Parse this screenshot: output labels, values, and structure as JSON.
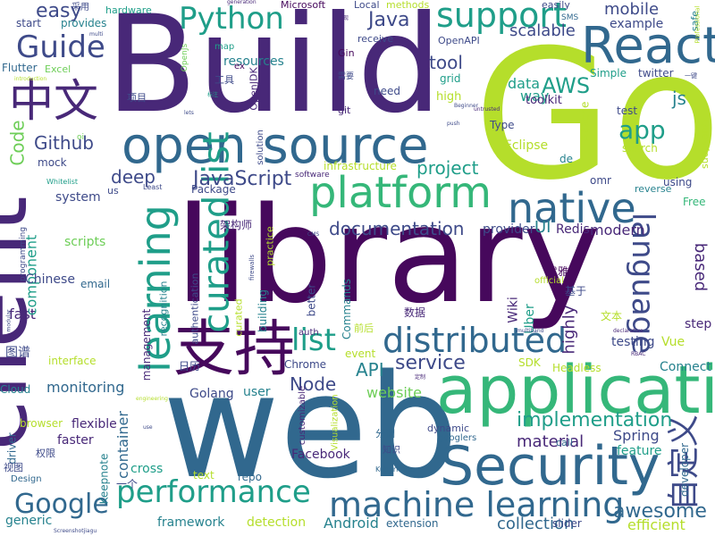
{
  "palette": {
    "purple": "#46085c",
    "indigo": "#482878",
    "blue": "#3e4a89",
    "slate": "#31688e",
    "teal": "#26828e",
    "green_teal": "#1f9e89",
    "green": "#35b779",
    "lime": "#6ece58",
    "yellow_green": "#b5de2b",
    "yellow": "#cce42a"
  },
  "words": [
    {
      "text": "Build",
      "color": "indigo"
    },
    {
      "text": "Go",
      "color": "yellow_green"
    },
    {
      "text": "library",
      "color": "purple"
    },
    {
      "text": "web",
      "color": "slate"
    },
    {
      "text": "client",
      "color": "indigo"
    },
    {
      "text": "application",
      "color": "green"
    },
    {
      "text": "Security",
      "color": "slate"
    },
    {
      "text": "open source",
      "color": "slate"
    },
    {
      "text": "React",
      "color": "slate"
    },
    {
      "text": "支持",
      "color": "purple"
    },
    {
      "text": "platform",
      "color": "green"
    },
    {
      "text": "machine learning",
      "color": "slate"
    },
    {
      "text": "native",
      "color": "slate"
    },
    {
      "text": "learning",
      "color": "green_teal"
    },
    {
      "text": "Python",
      "color": "green_teal"
    },
    {
      "text": "support",
      "color": "green_teal"
    },
    {
      "text": "Guide",
      "color": "blue"
    },
    {
      "text": "中文",
      "color": "indigo"
    },
    {
      "text": "curated list",
      "color": "green_teal"
    },
    {
      "text": "distributed",
      "color": "slate"
    },
    {
      "text": "performance",
      "color": "green_teal"
    },
    {
      "text": "language",
      "color": "blue"
    },
    {
      "text": "Google",
      "color": "slate"
    },
    {
      "text": "自定义",
      "color": "blue"
    },
    {
      "text": "awesome",
      "color": "slate"
    },
    {
      "text": "implementation",
      "color": "green_teal"
    },
    {
      "text": "documentation",
      "color": "blue"
    },
    {
      "text": "list",
      "color": "green_teal"
    },
    {
      "text": "JavaScript",
      "color": "blue"
    },
    {
      "text": "app",
      "color": "green_teal"
    },
    {
      "text": "AWS",
      "color": "green_teal"
    },
    {
      "text": "service",
      "color": "blue"
    },
    {
      "text": "project",
      "color": "green_teal"
    },
    {
      "text": "mobile",
      "color": "blue"
    },
    {
      "text": "scalable",
      "color": "blue"
    },
    {
      "text": "Github",
      "color": "blue"
    },
    {
      "text": "tool",
      "color": "blue"
    },
    {
      "text": "easy",
      "color": "blue"
    },
    {
      "text": "Java",
      "color": "blue"
    },
    {
      "text": "collection",
      "color": "slate"
    },
    {
      "text": "material",
      "color": "indigo"
    },
    {
      "text": "highly",
      "color": "indigo"
    },
    {
      "text": "Node",
      "color": "blue"
    },
    {
      "text": "deep",
      "color": "blue"
    },
    {
      "text": "API",
      "color": "teal"
    },
    {
      "text": "Code",
      "color": "lime"
    },
    {
      "text": "based",
      "color": "indigo"
    },
    {
      "text": "monitoring",
      "color": "slate"
    },
    {
      "text": "Spring",
      "color": "blue"
    },
    {
      "text": "framework",
      "color": "teal"
    },
    {
      "text": "resources",
      "color": "teal"
    },
    {
      "text": "data",
      "color": "green_teal"
    },
    {
      "text": "js",
      "color": "teal"
    },
    {
      "text": "way",
      "color": "green_teal"
    },
    {
      "text": "website",
      "color": "lime"
    },
    {
      "text": "container",
      "color": "slate"
    },
    {
      "text": "Android",
      "color": "teal"
    },
    {
      "text": "efficient",
      "color": "yellow_green"
    },
    {
      "text": "detection",
      "color": "yellow_green"
    },
    {
      "text": "fast",
      "color": "indigo"
    },
    {
      "text": "system",
      "color": "blue"
    },
    {
      "text": "component",
      "color": "green_teal"
    },
    {
      "text": "modern",
      "color": "indigo"
    },
    {
      "text": "Redis",
      "color": "indigo"
    },
    {
      "text": "UI",
      "color": "teal"
    },
    {
      "text": "provider",
      "color": "blue"
    },
    {
      "text": "scripts",
      "color": "lime"
    },
    {
      "text": "example",
      "color": "blue"
    },
    {
      "text": "Eclipse",
      "color": "yellow_green"
    },
    {
      "text": "Chinese",
      "color": "blue"
    },
    {
      "text": "Facebook",
      "color": "indigo"
    },
    {
      "text": "Chrome",
      "color": "blue"
    },
    {
      "text": "Golang",
      "color": "blue"
    },
    {
      "text": "generic",
      "color": "teal"
    },
    {
      "text": "faster",
      "color": "indigo"
    },
    {
      "text": "flexible",
      "color": "indigo"
    },
    {
      "text": "browser",
      "color": "yellow_green"
    },
    {
      "text": "user",
      "color": "teal"
    },
    {
      "text": "cross",
      "color": "green_teal"
    },
    {
      "text": "Uber",
      "color": "green_teal"
    },
    {
      "text": "Wiki",
      "color": "indigo"
    },
    {
      "text": "event",
      "color": "yellow_green"
    },
    {
      "text": "testing",
      "color": "blue"
    },
    {
      "text": "Vue",
      "color": "yellow_green"
    },
    {
      "text": "step",
      "color": "indigo"
    },
    {
      "text": "Connect",
      "color": "teal"
    },
    {
      "text": "SDK",
      "color": "yellow_green"
    },
    {
      "text": "Headless",
      "color": "yellow_green"
    },
    {
      "text": "feature",
      "color": "green_teal"
    },
    {
      "text": "developer",
      "color": "slate"
    },
    {
      "text": "repo",
      "color": "slate"
    },
    {
      "text": "text",
      "color": "yellow_green"
    },
    {
      "text": "Keepnote",
      "color": "teal"
    },
    {
      "text": "Design",
      "color": "slate"
    },
    {
      "text": "driver",
      "color": "slate"
    },
    {
      "text": "Cloud",
      "color": "teal"
    },
    {
      "text": "email",
      "color": "slate"
    },
    {
      "text": "interface",
      "color": "yellow_green"
    },
    {
      "text": "mock",
      "color": "blue"
    },
    {
      "text": "Excel",
      "color": "lime"
    },
    {
      "text": "Flutter",
      "color": "slate"
    },
    {
      "text": "start",
      "color": "blue"
    },
    {
      "text": "provides",
      "color": "teal"
    },
    {
      "text": "hardware",
      "color": "green_teal"
    },
    {
      "text": "Microsoft",
      "color": "purple"
    },
    {
      "text": "Local",
      "color": "blue"
    },
    {
      "text": "methods",
      "color": "yellow_green"
    },
    {
      "text": "easily",
      "color": "blue"
    },
    {
      "text": "safe",
      "color": "teal"
    },
    {
      "text": "SMS",
      "color": "slate"
    },
    {
      "text": "receive",
      "color": "blue"
    },
    {
      "text": "OpenAPI",
      "color": "blue"
    },
    {
      "text": "Gin",
      "color": "purple"
    },
    {
      "text": "map",
      "color": "green_teal"
    },
    {
      "text": "ex",
      "color": "purple"
    },
    {
      "text": "Everything",
      "color": "indigo"
    },
    {
      "text": "OpenJDK",
      "color": "indigo"
    },
    {
      "text": "OpenJs",
      "color": "lime"
    },
    {
      "text": "工具",
      "color": "blue"
    },
    {
      "text": "项目",
      "color": "blue"
    },
    {
      "text": "需要",
      "color": "blue"
    },
    {
      "text": "git",
      "color": "indigo"
    },
    {
      "text": "need",
      "color": "blue"
    },
    {
      "text": "high",
      "color": "yellow_green"
    },
    {
      "text": "grid",
      "color": "green_teal"
    },
    {
      "text": "toolkit",
      "color": "indigo"
    },
    {
      "text": "Simple",
      "color": "green_teal"
    },
    {
      "text": "twitter",
      "color": "blue"
    },
    {
      "text": "test",
      "color": "blue"
    },
    {
      "text": "Type",
      "color": "blue"
    },
    {
      "text": "Apache",
      "color": "yellow_green"
    },
    {
      "text": "search",
      "color": "yellow_green"
    },
    {
      "text": "Questions",
      "color": "yellow_green"
    },
    {
      "text": "de",
      "color": "teal"
    },
    {
      "text": "omr",
      "color": "blue"
    },
    {
      "text": "using",
      "color": "blue"
    },
    {
      "text": "reverse",
      "color": "teal"
    },
    {
      "text": "Free",
      "color": "green"
    },
    {
      "text": "infrastructure",
      "color": "yellow_green"
    },
    {
      "text": "software",
      "color": "indigo"
    },
    {
      "text": "solution",
      "color": "blue"
    },
    {
      "text": "Package",
      "color": "blue"
    },
    {
      "text": "us",
      "color": "blue"
    },
    {
      "text": "Least",
      "color": "blue"
    },
    {
      "text": "Whitelist",
      "color": "green_teal"
    },
    {
      "text": "oi",
      "color": "lime"
    },
    {
      "text": "架构师",
      "color": "indigo"
    },
    {
      "text": "practice",
      "color": "yellow_green"
    },
    {
      "text": "firewalls",
      "color": "blue"
    },
    {
      "text": "programming",
      "color": "blue"
    },
    {
      "text": "authentication",
      "color": "blue"
    },
    {
      "text": "curated",
      "color": "yellow_green"
    },
    {
      "text": "recognition",
      "color": "teal"
    },
    {
      "text": "management",
      "color": "indigo"
    },
    {
      "text": "building",
      "color": "teal"
    },
    {
      "text": "better",
      "color": "blue"
    },
    {
      "text": "Commands",
      "color": "teal"
    },
    {
      "text": "基于",
      "color": "blue"
    },
    {
      "text": "优雅",
      "color": "purple"
    },
    {
      "text": "official",
      "color": "yellow_green"
    },
    {
      "text": "数据",
      "color": "indigo"
    },
    {
      "text": "文本",
      "color": "yellow_green"
    },
    {
      "text": "前后",
      "color": "yellow_green"
    },
    {
      "text": "auth",
      "color": "indigo"
    },
    {
      "text": "图谱",
      "color": "blue"
    },
    {
      "text": "日历",
      "color": "blue"
    },
    {
      "text": "customizable",
      "color": "indigo"
    },
    {
      "text": "分词",
      "color": "slate"
    },
    {
      "text": "知识",
      "color": "blue"
    },
    {
      "text": "googlers",
      "color": "slate"
    },
    {
      "text": "dynamic",
      "color": "blue"
    },
    {
      "text": "call",
      "color": "slate"
    },
    {
      "text": "Visualization",
      "color": "yellow_green"
    },
    {
      "text": "一个",
      "color": "blue"
    },
    {
      "text": "视图",
      "color": "blue"
    },
    {
      "text": "权限",
      "color": "blue"
    },
    {
      "text": "Kubernetes",
      "color": "slate"
    },
    {
      "text": "extension",
      "color": "slate"
    },
    {
      "text": "slider",
      "color": "blue"
    },
    {
      "text": "采用",
      "color": "blue"
    },
    {
      "text": "Professional",
      "color": "yellow_green"
    },
    {
      "text": "一键",
      "color": "blue"
    },
    {
      "text": "multi",
      "color": "blue"
    },
    {
      "text": "generation",
      "color": "indigo"
    },
    {
      "text": "实现",
      "color": "indigo"
    },
    {
      "text": "introduction",
      "color": "yellow_green"
    },
    {
      "text": "标注",
      "color": "green_teal"
    },
    {
      "text": "lets",
      "color": "blue"
    },
    {
      "text": "Beginner",
      "color": "blue"
    },
    {
      "text": "untrusted",
      "color": "indigo"
    },
    {
      "text": "push",
      "color": "blue"
    },
    {
      "text": "CMS",
      "color": "blue"
    },
    {
      "text": "modular",
      "color": "blue"
    },
    {
      "text": "multiband",
      "color": "blue"
    },
    {
      "text": "declarative",
      "color": "indigo"
    },
    {
      "text": "RBAC",
      "color": "indigo"
    },
    {
      "text": "定制",
      "color": "indigo"
    },
    {
      "text": "engineering",
      "color": "yellow_green"
    },
    {
      "text": "use",
      "color": "blue"
    },
    {
      "text": "Screenshotjiagu",
      "color": "blue"
    }
  ]
}
